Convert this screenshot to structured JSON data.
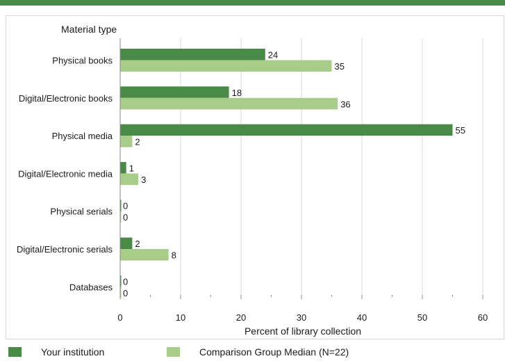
{
  "chart_data": {
    "type": "bar",
    "orientation": "horizontal",
    "category_axis_title": "Material type",
    "xlabel": "Percent of library collection",
    "xlim": [
      0,
      60
    ],
    "xticks": [
      0,
      10,
      20,
      30,
      40,
      50,
      60
    ],
    "grid": true,
    "legend_position": "bottom",
    "categories": [
      "Physical books",
      "Digital/Electronic books",
      "Physical media",
      "Digital/Electronic media",
      "Physical serials",
      "Digital/Electronic serials",
      "Databases"
    ],
    "series": [
      {
        "name": "Your institution",
        "color": "#4a8a48",
        "values": [
          24,
          18,
          55,
          1,
          0,
          2,
          0
        ]
      },
      {
        "name": "Comparison Group Median (N=22)",
        "color": "#a8cc8a",
        "values": [
          35,
          36,
          2,
          3,
          0,
          8,
          0
        ]
      }
    ]
  }
}
